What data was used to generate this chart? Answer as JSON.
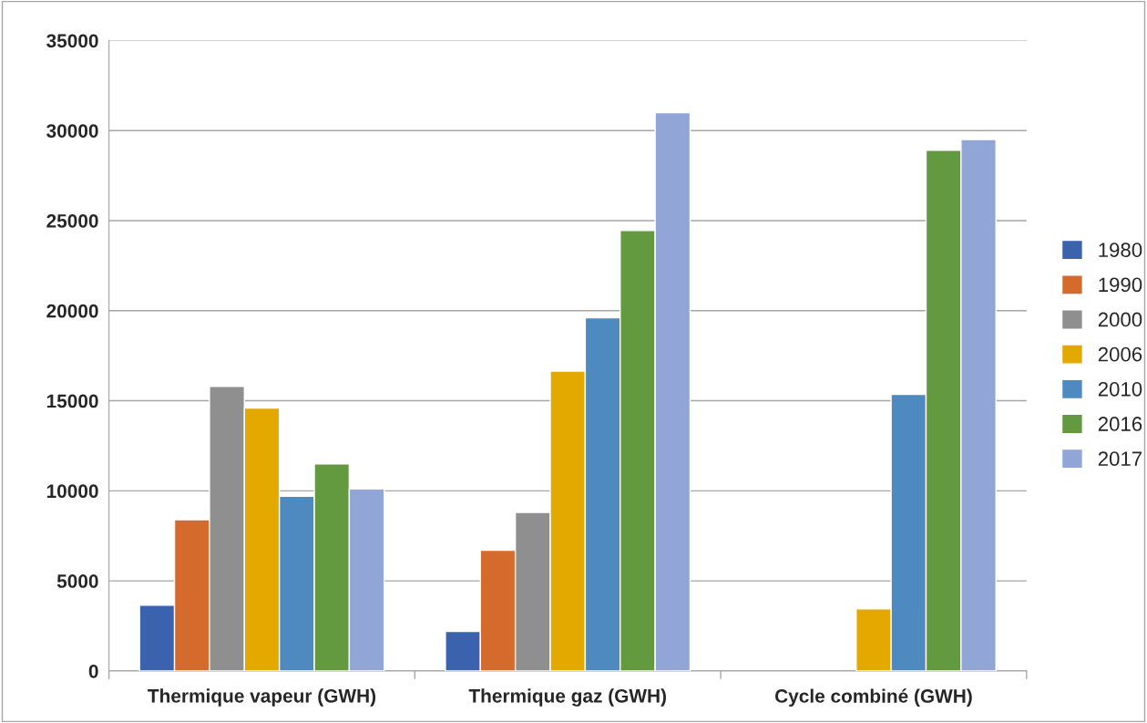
{
  "chart_data": {
    "type": "bar",
    "categories": [
      "Thermique vapeur (GWH)",
      "Thermique gaz (GWH)",
      "Cycle combiné (GWH)"
    ],
    "series": [
      {
        "name": "1980",
        "color": "#3a62ad",
        "values": [
          3650,
          2200,
          null
        ]
      },
      {
        "name": "1990",
        "color": "#d46b2c",
        "values": [
          8400,
          6700,
          null
        ]
      },
      {
        "name": "2000",
        "color": "#8f8f8f",
        "values": [
          15800,
          8800,
          null
        ]
      },
      {
        "name": "2006",
        "color": "#e3a900",
        "values": [
          14600,
          16650,
          3450
        ]
      },
      {
        "name": "2010",
        "color": "#4e8abf",
        "values": [
          9700,
          19600,
          15350
        ]
      },
      {
        "name": "2016",
        "color": "#63993f",
        "values": [
          11500,
          24450,
          28900
        ]
      },
      {
        "name": "2017",
        "color": "#91a5d6",
        "values": [
          10100,
          31000,
          29500
        ]
      }
    ],
    "ylim": [
      0,
      35000
    ],
    "yticks": [
      0,
      5000,
      10000,
      15000,
      20000,
      25000,
      30000,
      35000
    ],
    "grid": "y",
    "legend": "right"
  }
}
